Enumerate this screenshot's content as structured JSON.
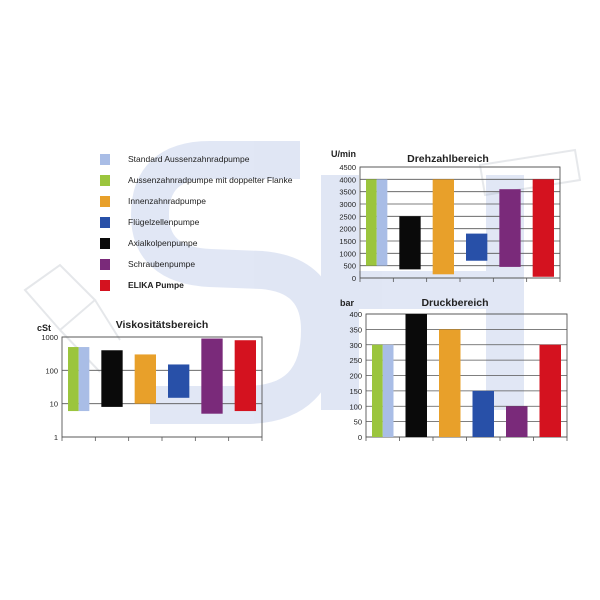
{
  "colors": {
    "standard": "#a9bde6",
    "doppelt": "#9bc53d",
    "innen": "#e8a02a",
    "fluegel": "#2850a8",
    "axial": "#0a0a0a",
    "schrauben": "#7a2a7a",
    "elika": "#d4121f",
    "watermark": "#c8d3ec"
  },
  "legend": [
    {
      "key": "standard",
      "label": "Standard Aussenzahnradpumpe",
      "bold": false
    },
    {
      "key": "doppelt",
      "label": "Aussenzahnradpumpe mit doppelter Flanke",
      "bold": false
    },
    {
      "key": "innen",
      "label": "Innenzahnradpumpe",
      "bold": false
    },
    {
      "key": "fluegel",
      "label": "Flügelzellenpumpe",
      "bold": false
    },
    {
      "key": "axial",
      "label": "Axialkolpenpumpe",
      "bold": false
    },
    {
      "key": "schrauben",
      "label": "Schraubenpumpe",
      "bold": false
    },
    {
      "key": "elika",
      "label": "ELIKA Pumpe",
      "bold": true
    }
  ],
  "chart_data": [
    {
      "id": "drehzahl",
      "type": "bar",
      "title": "Drehzahlbereich",
      "ylabel": "U/min",
      "ylim": [
        0,
        4500
      ],
      "yticks": [
        0,
        500,
        1000,
        1500,
        2000,
        2500,
        3000,
        3500,
        4000,
        4500
      ],
      "scale": "linear",
      "grid": true,
      "bars": [
        {
          "key": "doppelt",
          "slot": 0,
          "low": 500,
          "high": 4000,
          "part": "left"
        },
        {
          "key": "standard",
          "slot": 0,
          "low": 500,
          "high": 4000,
          "part": "right"
        },
        {
          "key": "axial",
          "slot": 1,
          "low": 350,
          "high": 2500
        },
        {
          "key": "innen",
          "slot": 2,
          "low": 150,
          "high": 4000
        },
        {
          "key": "fluegel",
          "slot": 3,
          "low": 700,
          "high": 1800
        },
        {
          "key": "schrauben",
          "slot": 4,
          "low": 450,
          "high": 3600
        },
        {
          "key": "elika",
          "slot": 5,
          "low": 50,
          "high": 4000
        }
      ]
    },
    {
      "id": "druck",
      "type": "bar",
      "title": "Druckbereich",
      "ylabel": "bar",
      "ylim": [
        0,
        400
      ],
      "yticks": [
        0,
        50,
        100,
        150,
        200,
        250,
        300,
        350,
        400
      ],
      "scale": "linear",
      "grid": true,
      "bars": [
        {
          "key": "doppelt",
          "slot": 0,
          "low": 0,
          "high": 300,
          "part": "left"
        },
        {
          "key": "standard",
          "slot": 0,
          "low": 0,
          "high": 300,
          "part": "right"
        },
        {
          "key": "axial",
          "slot": 1,
          "low": 0,
          "high": 400
        },
        {
          "key": "innen",
          "slot": 2,
          "low": 0,
          "high": 350
        },
        {
          "key": "fluegel",
          "slot": 3,
          "low": 0,
          "high": 150
        },
        {
          "key": "schrauben",
          "slot": 4,
          "low": 0,
          "high": 100
        },
        {
          "key": "elika",
          "slot": 5,
          "low": 0,
          "high": 300
        }
      ]
    },
    {
      "id": "viskositaet",
      "type": "bar",
      "title": "Viskositätsbereich",
      "ylabel": "cSt",
      "ylim": [
        1,
        1000
      ],
      "yticks": [
        1,
        10,
        100,
        1000
      ],
      "scale": "log",
      "grid": true,
      "bars": [
        {
          "key": "doppelt",
          "slot": 0,
          "low": 6,
          "high": 500,
          "part": "left"
        },
        {
          "key": "standard",
          "slot": 0,
          "low": 6,
          "high": 500,
          "part": "right"
        },
        {
          "key": "axial",
          "slot": 1,
          "low": 8,
          "high": 400
        },
        {
          "key": "innen",
          "slot": 2,
          "low": 10,
          "high": 300
        },
        {
          "key": "fluegel",
          "slot": 3,
          "low": 15,
          "high": 150
        },
        {
          "key": "schrauben",
          "slot": 4,
          "low": 5,
          "high": 900
        },
        {
          "key": "elika",
          "slot": 5,
          "low": 6,
          "high": 800
        }
      ]
    }
  ]
}
